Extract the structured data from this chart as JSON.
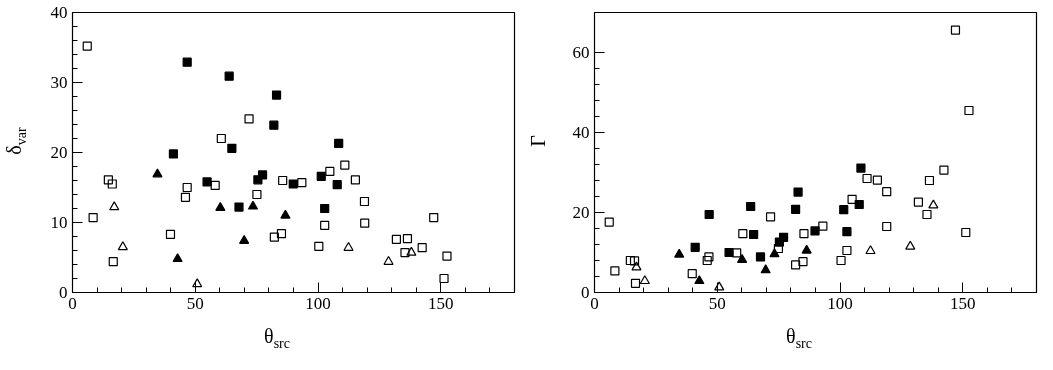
{
  "chart_data": [
    {
      "type": "scatter",
      "xlabel": "θ$_{src}$",
      "ylabel": "δ$_{var}$",
      "xlim": [
        0,
        180
      ],
      "ylim": [
        0,
        40
      ],
      "xticks": [
        0,
        50,
        100,
        150
      ],
      "yticks": [
        0,
        10,
        20,
        30,
        40
      ],
      "grid": false,
      "series": [
        {
          "color": "#000000",
          "marker": "square",
          "x": [
            46.7,
            63.8,
            83.1,
            82.0,
            64.9,
            41.1,
            54.8,
            77.4,
            75.5,
            89.9,
            67.8,
            108.4,
            101.3,
            107.8,
            102.7
          ],
          "values": [
            32.9,
            30.9,
            28.2,
            23.9,
            20.6,
            19.8,
            15.8,
            16.8,
            16.1,
            15.5,
            12.2,
            21.3,
            16.6,
            15.4,
            12.0
          ]
        },
        {
          "color": "#000000",
          "marker": "square",
          "x": [
            6.0,
            14.6,
            16.2,
            8.4,
            16.6,
            39.9,
            46.0,
            46.7,
            58.1,
            60.6,
            71.9,
            75.1,
            82.2,
            85.1,
            85.6,
            93.4,
            110.9,
            104.8,
            115.2,
            118.9,
            102.7,
            100.3,
            119.0,
            131.9,
            136.4,
            135.4,
            142.4,
            147.1,
            152.5,
            151.3
          ],
          "values": [
            35.2,
            16.1,
            15.5,
            10.7,
            4.4,
            8.3,
            13.6,
            15.0,
            15.3,
            22.0,
            24.8,
            14.0,
            7.9,
            8.4,
            16.0,
            15.7,
            18.2,
            17.3,
            16.1,
            13.0,
            9.6,
            6.6,
            9.9,
            7.6,
            7.7,
            5.7,
            6.4,
            10.7,
            5.2,
            2.0
          ]
        },
        {
          "color": "#000000",
          "marker": "triangle",
          "x": [
            34.6,
            60.2,
            73.5,
            86.7,
            69.9,
            42.8
          ],
          "values": [
            16.9,
            12.1,
            12.3,
            11.0,
            7.4,
            4.8
          ]
        },
        {
          "color": "#000000",
          "marker": "triangle",
          "x": [
            17.0,
            20.5,
            50.8,
            112.4,
            128.7,
            138.0
          ],
          "values": [
            12.2,
            6.5,
            1.2,
            6.4,
            4.4,
            5.7
          ]
        }
      ]
    },
    {
      "type": "scatter",
      "xlabel": "θ$_{src}$",
      "ylabel": "Γ",
      "xlim": [
        0,
        180
      ],
      "ylim": [
        0,
        70
      ],
      "xticks": [
        0,
        50,
        100,
        150
      ],
      "yticks": [
        0,
        20,
        40,
        60
      ],
      "grid": false,
      "series": [
        {
          "color": "#000000",
          "marker": "square",
          "x": [
            46.7,
            63.6,
            82.9,
            81.9,
            64.8,
            41.0,
            54.8,
            77.0,
            75.3,
            89.8,
            67.6,
            108.5,
            101.5,
            107.8,
            102.8
          ],
          "values": [
            19.5,
            21.5,
            25.1,
            20.8,
            14.5,
            11.3,
            10.0,
            13.8,
            12.6,
            15.4,
            8.9,
            31.1,
            20.7,
            22.0,
            15.2
          ]
        },
        {
          "color": "#000000",
          "marker": "square",
          "x": [
            6.0,
            8.3,
            14.6,
            16.3,
            16.7,
            39.8,
            45.9,
            46.6,
            57.9,
            60.4,
            71.7,
            74.9,
            81.9,
            84.9,
            85.3,
            93.0,
            104.9,
            111.0,
            115.2,
            119.0,
            102.8,
            100.4,
            119.0,
            131.9,
            136.4,
            135.4,
            142.3,
            147.0,
            152.5,
            151.2
          ],
          "values": [
            17.6,
            5.4,
            8.0,
            7.9,
            2.3,
            4.7,
            8.0,
            8.9,
            9.9,
            14.7,
            18.9,
            11.0,
            6.9,
            7.7,
            14.7,
            16.6,
            23.3,
            28.5,
            28.1,
            25.2,
            10.5,
            8.0,
            16.5,
            22.6,
            28.0,
            19.5,
            30.6,
            65.6,
            45.5,
            15.0
          ]
        },
        {
          "color": "#000000",
          "marker": "triangle",
          "x": [
            34.5,
            60.1,
            73.3,
            86.4,
            69.7,
            42.7
          ],
          "values": [
            9.5,
            8.2,
            9.6,
            10.5,
            5.6,
            2.9
          ]
        },
        {
          "color": "#000000",
          "marker": "triangle",
          "x": [
            17.1,
            20.5,
            50.8,
            112.4,
            128.6,
            138.0
          ],
          "values": [
            6.3,
            2.9,
            1.3,
            10.4,
            11.5,
            21.8
          ]
        }
      ]
    }
  ]
}
